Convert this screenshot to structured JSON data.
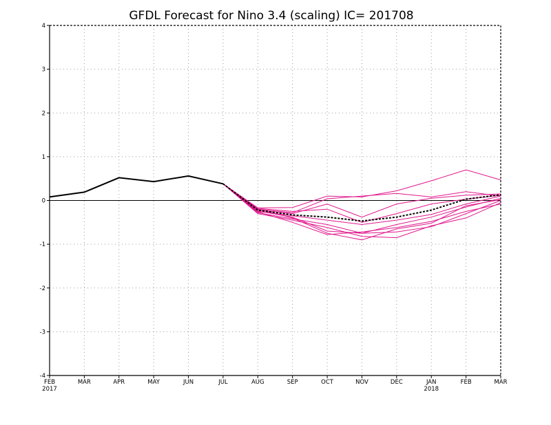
{
  "chart_data": {
    "type": "line",
    "title": "GFDL Forecast for Nino 3.4 (scaling) IC= 201708",
    "xlabel": "",
    "ylabel": "",
    "x_ticks": [
      {
        "month": "FEB",
        "year": "2017"
      },
      {
        "month": "MAR",
        "year": ""
      },
      {
        "month": "APR",
        "year": ""
      },
      {
        "month": "MAY",
        "year": ""
      },
      {
        "month": "JUN",
        "year": ""
      },
      {
        "month": "JUL",
        "year": ""
      },
      {
        "month": "AUG",
        "year": ""
      },
      {
        "month": "SEP",
        "year": ""
      },
      {
        "month": "OCT",
        "year": ""
      },
      {
        "month": "NOV",
        "year": ""
      },
      {
        "month": "DEC",
        "year": ""
      },
      {
        "month": "JAN",
        "year": "2018"
      },
      {
        "month": "FEB",
        "year": ""
      },
      {
        "month": "MAR",
        "year": ""
      }
    ],
    "y_ticks": [
      "-4",
      "-3",
      "-2",
      "-1",
      "0",
      "1",
      "2",
      "3",
      "4"
    ],
    "ylim": [
      -4,
      4
    ],
    "grid": true,
    "colors": {
      "observed": "#000000",
      "ensemble": "#e0168c",
      "ensemble_mean": "#000000",
      "grid": "#9a9a9a",
      "zero_line": "#000000"
    },
    "observed": {
      "start_index": 0,
      "values": [
        0.08,
        0.19,
        0.52,
        0.43,
        0.56,
        0.38
      ]
    },
    "ensemble_start_index": 5,
    "ensemble_members": [
      [
        0.38,
        -0.17,
        -0.16,
        0.1,
        0.08,
        0.22,
        0.45,
        0.7,
        0.47
      ],
      [
        0.38,
        -0.2,
        -0.28,
        0.04,
        0.1,
        0.16,
        0.08,
        0.2,
        0.1
      ],
      [
        0.38,
        -0.22,
        -0.3,
        -0.08,
        -0.38,
        -0.08,
        0.05,
        0.12,
        0.15
      ],
      [
        0.38,
        -0.18,
        -0.25,
        -0.2,
        -0.5,
        -0.3,
        -0.08,
        0.03,
        0.12
      ],
      [
        0.38,
        -0.25,
        -0.35,
        -0.45,
        -0.55,
        -0.45,
        -0.32,
        -0.08,
        0.1
      ],
      [
        0.38,
        -0.28,
        -0.42,
        -0.55,
        -0.75,
        -0.55,
        -0.38,
        -0.15,
        0.05
      ],
      [
        0.38,
        -0.2,
        -0.4,
        -0.75,
        -0.9,
        -0.65,
        -0.52,
        -0.12,
        0.02
      ],
      [
        0.38,
        -0.3,
        -0.45,
        -0.62,
        -0.82,
        -0.85,
        -0.58,
        -0.4,
        -0.05
      ],
      [
        0.38,
        -0.24,
        -0.38,
        -0.7,
        -0.75,
        -0.72,
        -0.6,
        -0.3,
        0.0
      ],
      [
        0.38,
        -0.26,
        -0.5,
        -0.78,
        -0.72,
        -0.62,
        -0.48,
        -0.25,
        -0.08
      ]
    ],
    "ensemble_mean": {
      "start_index": 5,
      "values": [
        0.38,
        -0.22,
        -0.33,
        -0.38,
        -0.47,
        -0.38,
        -0.22,
        0.03,
        0.13
      ]
    }
  }
}
